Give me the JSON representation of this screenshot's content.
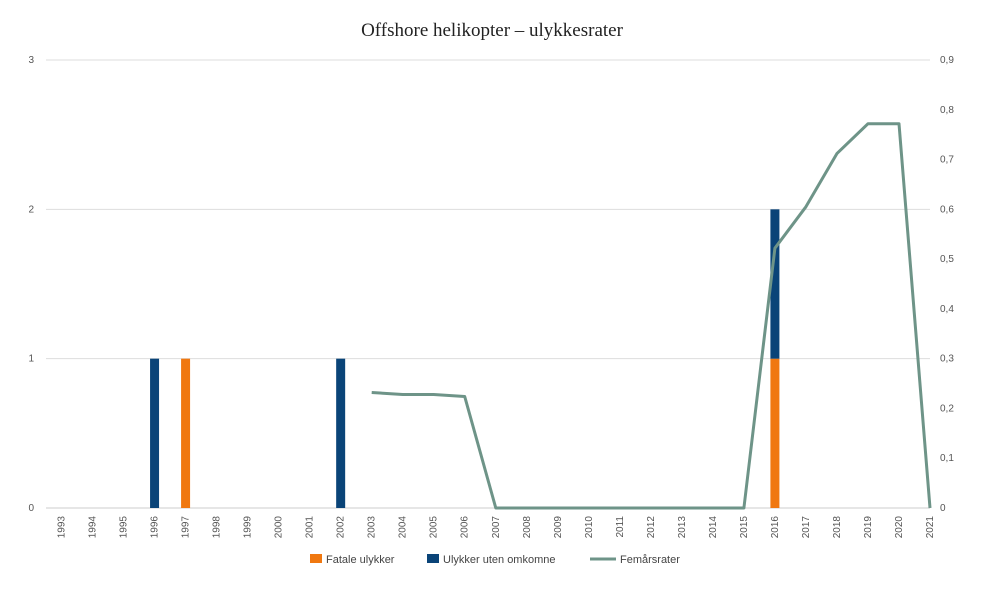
{
  "chart_data": {
    "type": "bar",
    "title": "Offshore helikopter – ulykkesrater",
    "categories": [
      "1993",
      "1994",
      "1995",
      "1996",
      "1997",
      "1998",
      "1999",
      "2000",
      "2001",
      "2002",
      "2003",
      "2004",
      "2005",
      "2006",
      "2007",
      "2008",
      "2009",
      "2010",
      "2011",
      "2012",
      "2013",
      "2014",
      "2015",
      "2016",
      "2017",
      "2018",
      "2019",
      "2020",
      "2021"
    ],
    "stacked": true,
    "series": [
      {
        "name": "Fatale ulykker",
        "axis": "left",
        "color": "#f07810",
        "values": [
          0,
          0,
          0,
          0,
          1,
          0,
          0,
          0,
          0,
          0,
          0,
          0,
          0,
          0,
          0,
          0,
          0,
          0,
          0,
          0,
          0,
          0,
          0,
          1,
          0,
          0,
          0,
          0,
          0
        ]
      },
      {
        "name": "Ulykker uten omkomne",
        "axis": "left",
        "color": "#0a4478",
        "values": [
          0,
          0,
          0,
          1,
          0,
          0,
          0,
          0,
          0,
          1,
          0,
          0,
          0,
          0,
          0,
          0,
          0,
          0,
          0,
          0,
          0,
          0,
          0,
          1,
          0,
          0,
          0,
          0,
          0
        ]
      },
      {
        "name": "Femårsrater",
        "axis": "right",
        "type": "line",
        "color": "#6e9488",
        "values": [
          null,
          null,
          null,
          null,
          null,
          null,
          null,
          null,
          null,
          null,
          0.232,
          0.228,
          0.228,
          0.224,
          0,
          0,
          0,
          0,
          0,
          0,
          0,
          0,
          0,
          0.522,
          0.605,
          0.712,
          0.772,
          0.772,
          0
        ]
      }
    ],
    "y_left": {
      "min": 0,
      "max": 3,
      "ticks": [
        "0",
        "1",
        "2",
        "3"
      ]
    },
    "y_right": {
      "min": 0,
      "max": 0.9,
      "ticks": [
        "0",
        "0,1",
        "0,2",
        "0,3",
        "0,4",
        "0,5",
        "0,6",
        "0,7",
        "0,8",
        "0,9"
      ]
    },
    "grid": true,
    "legend_position": "bottom"
  }
}
